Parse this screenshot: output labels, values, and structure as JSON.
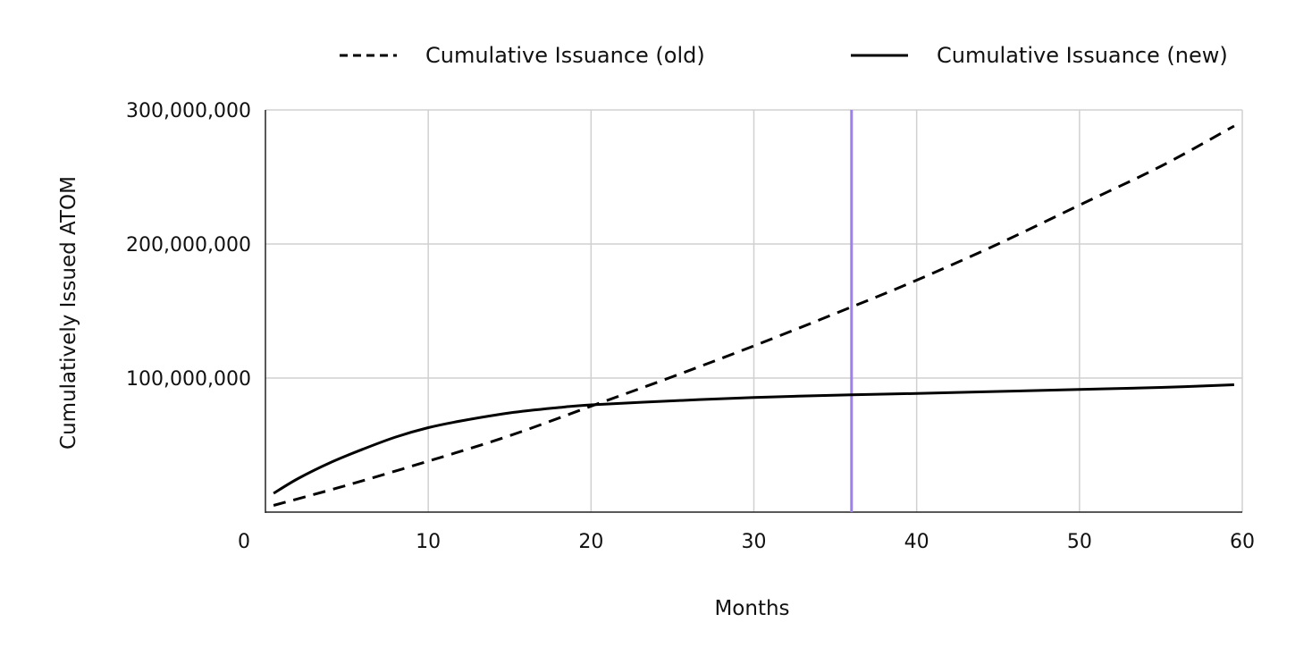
{
  "chart_data": {
    "type": "line",
    "title": "",
    "xlabel": "Months",
    "ylabel": "Cumulatively Issued ATOM",
    "xlim": [
      0,
      60
    ],
    "ylim": [
      0,
      300000000
    ],
    "x_ticks": [
      0,
      10,
      20,
      30,
      40,
      50,
      60
    ],
    "x_tick_labels": [
      "0",
      "10",
      "20",
      "30",
      "40",
      "50",
      "60"
    ],
    "y_ticks": [
      100000000,
      200000000,
      300000000
    ],
    "y_tick_labels": [
      "100,000,000",
      "200,000,000",
      "300,000,000"
    ],
    "grid": true,
    "legend_position": "top",
    "reference_line": {
      "x": 36,
      "color": "#a07ff0"
    },
    "series": [
      {
        "name": "Cumulative Issuance (old)",
        "style": "dashed",
        "color": "#000000",
        "x": [
          0.5,
          5,
          10,
          15,
          20,
          25,
          30,
          36,
          40,
          45,
          50,
          55,
          59.5
        ],
        "y": [
          5000000,
          20000000,
          38000000,
          57000000,
          79000000,
          101000000,
          124000000,
          153000000,
          173000000,
          200000000,
          229000000,
          258000000,
          288000000
        ]
      },
      {
        "name": "Cumulative Issuance (new)",
        "style": "solid",
        "color": "#000000",
        "x": [
          0.5,
          2,
          4,
          6,
          8,
          10,
          12,
          15,
          18,
          20,
          25,
          30,
          36,
          40,
          45,
          50,
          55,
          59.5
        ],
        "y": [
          14000000,
          25000000,
          37000000,
          47000000,
          56000000,
          63000000,
          68000000,
          74000000,
          78000000,
          80000000,
          83000000,
          85500000,
          87500000,
          88500000,
          90000000,
          91500000,
          93000000,
          95000000
        ]
      }
    ]
  }
}
